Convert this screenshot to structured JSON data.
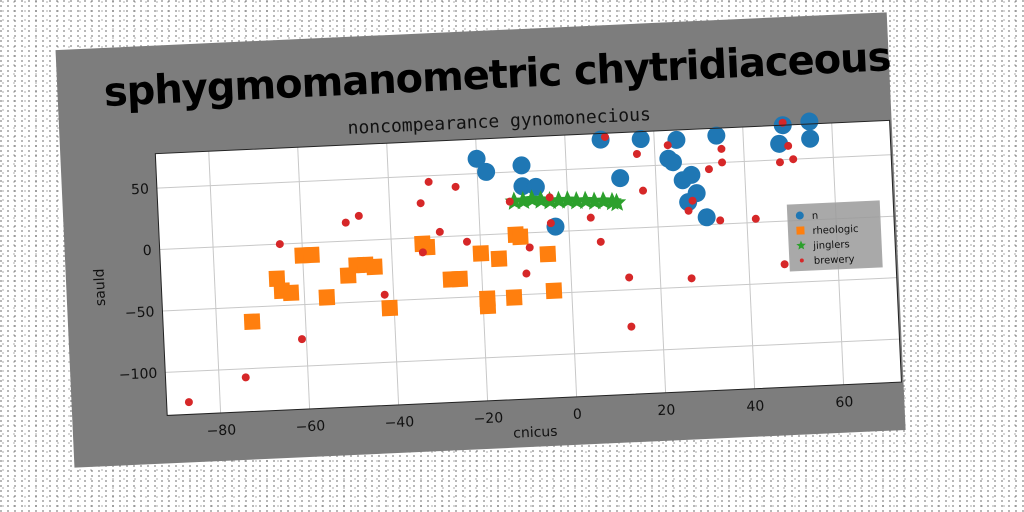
{
  "chart_data": {
    "type": "scatter",
    "title": "sphygmomanometric chytridiaceous",
    "subtitle": "noncompearance gynomonecious",
    "xlabel": "cnicus",
    "ylabel": "sauld",
    "xlim": [
      -92,
      73
    ],
    "ylim": [
      -135,
      78
    ],
    "xticks": [
      -80,
      -60,
      -40,
      -20,
      0,
      20,
      40,
      60
    ],
    "yticks": [
      50,
      0,
      -50,
      -100
    ],
    "grid": true,
    "legend_position": "right",
    "series": [
      {
        "name": "n",
        "color": "#1f77b4",
        "marker": "circle",
        "points": [
          [
            -20,
            62
          ],
          [
            -18,
            51
          ],
          [
            -10,
            55
          ],
          [
            -10,
            38
          ],
          [
            -7,
            37
          ],
          [
            -3,
            4
          ],
          [
            8,
            73
          ],
          [
            17,
            72
          ],
          [
            12,
            41
          ],
          [
            23,
            55
          ],
          [
            24,
            52
          ],
          [
            25,
            70
          ],
          [
            26,
            37
          ],
          [
            28,
            41
          ],
          [
            29,
            26
          ],
          [
            27,
            19
          ],
          [
            34,
            72
          ],
          [
            31,
            6
          ],
          [
            48,
            63
          ],
          [
            49,
            78
          ],
          [
            55,
            80
          ],
          [
            55,
            66
          ]
        ]
      },
      {
        "name": "rheologic",
        "color": "#ff7f0e",
        "marker": "square",
        "points": [
          [
            -72,
            -62
          ],
          [
            -66,
            -28
          ],
          [
            -65,
            -38
          ],
          [
            -63,
            -40
          ],
          [
            -60,
            -10
          ],
          [
            -58,
            -10
          ],
          [
            -55,
            -45
          ],
          [
            -50,
            -28
          ],
          [
            -48,
            -20
          ],
          [
            -46,
            -20
          ],
          [
            -44,
            -22
          ],
          [
            -41,
            -56
          ],
          [
            -33,
            -5
          ],
          [
            -32,
            -8
          ],
          [
            -27,
            -35
          ],
          [
            -25,
            -35
          ],
          [
            -20,
            -15
          ],
          [
            -19,
            -52
          ],
          [
            -19,
            -58
          ],
          [
            -16,
            -20
          ],
          [
            -13,
            -52
          ],
          [
            -12,
            -1
          ],
          [
            -11,
            -3
          ],
          [
            -5,
            -18
          ],
          [
            -4,
            -48
          ]
        ]
      },
      {
        "name": "jinglers",
        "color": "#2ca02c",
        "marker": "star",
        "points": [
          [
            -12,
            26
          ],
          [
            -10,
            26
          ],
          [
            -8,
            27
          ],
          [
            -6,
            26
          ],
          [
            -4,
            25
          ],
          [
            -2,
            25
          ],
          [
            0,
            25
          ],
          [
            2,
            24
          ],
          [
            4,
            24
          ],
          [
            6,
            23
          ],
          [
            8,
            23
          ],
          [
            10,
            22
          ],
          [
            11,
            21
          ]
        ]
      },
      {
        "name": "brewery",
        "color": "#d62728",
        "marker": "circle-small",
        "points": [
          [
            -87,
            -125
          ],
          [
            -74,
            -107
          ],
          [
            -65,
            0
          ],
          [
            -61,
            -78
          ],
          [
            -50,
            15
          ],
          [
            -47,
            20
          ],
          [
            -42,
            -45
          ],
          [
            -33,
            28
          ],
          [
            -33,
            -12
          ],
          [
            -31,
            45
          ],
          [
            -29,
            4
          ],
          [
            -25,
            40
          ],
          [
            -23,
            -5
          ],
          [
            -13,
            26
          ],
          [
            -10,
            -33
          ],
          [
            -9,
            -12
          ],
          [
            -4,
            28
          ],
          [
            -4,
            7
          ],
          [
            5,
            10
          ],
          [
            7,
            -10
          ],
          [
            9,
            75
          ],
          [
            13,
            -40
          ],
          [
            13,
            -80
          ],
          [
            16,
            60
          ],
          [
            17,
            30
          ],
          [
            23,
            66
          ],
          [
            27,
            12
          ],
          [
            27,
            -43
          ],
          [
            28,
            20
          ],
          [
            32,
            45
          ],
          [
            34,
            3
          ],
          [
            35,
            61
          ],
          [
            35,
            50
          ],
          [
            42,
            3
          ],
          [
            48,
            -35
          ],
          [
            48,
            48
          ],
          [
            49,
            80
          ],
          [
            50,
            61
          ],
          [
            51,
            50
          ]
        ]
      }
    ]
  }
}
